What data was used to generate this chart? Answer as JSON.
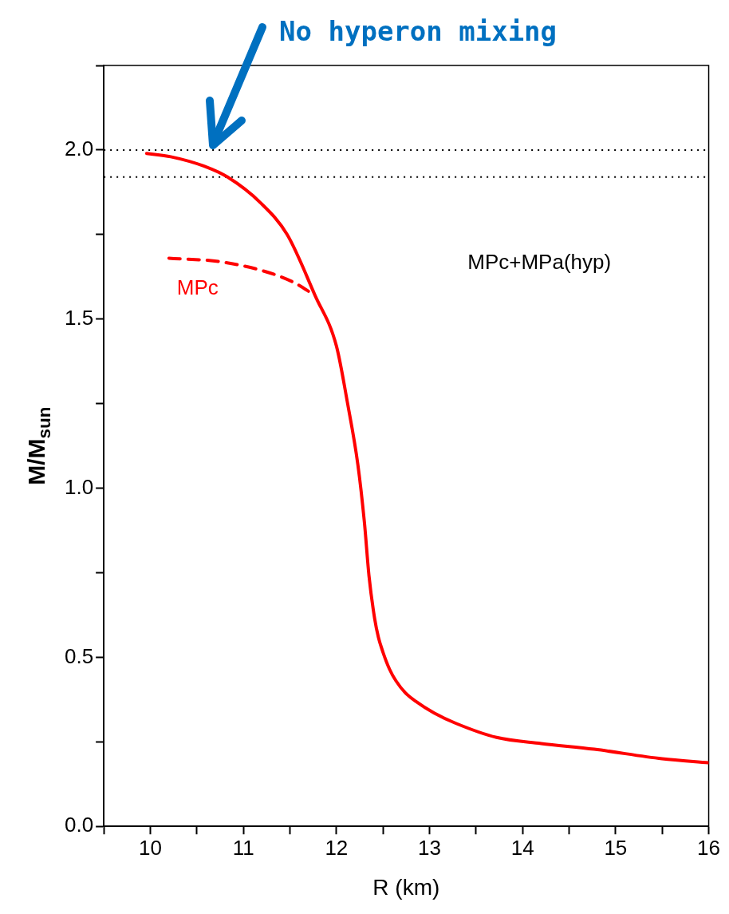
{
  "chart_data": {
    "type": "line",
    "xlabel": "R (km)",
    "ylabel": "M/M$_{sun}$",
    "xlim": [
      9.5,
      16
    ],
    "ylim": [
      0,
      2.25
    ],
    "xticks": [
      {
        "value": 9.5,
        "label": null
      },
      10,
      {
        "value": 10.5,
        "label": null
      },
      11,
      {
        "value": 11.5,
        "label": null
      },
      12,
      {
        "value": 12.5,
        "label": null
      },
      13,
      {
        "value": 13.5,
        "label": null
      },
      14,
      {
        "value": 14.5,
        "label": null
      },
      15,
      {
        "value": 15.5,
        "label": null
      },
      16
    ],
    "yticks": [
      {
        "value": 0,
        "label": "0.0"
      },
      {
        "value": 0.25,
        "label": null
      },
      {
        "value": 0.5,
        "label": "0.5"
      },
      {
        "value": 0.75,
        "label": null
      },
      {
        "value": 1,
        "label": "1.0"
      },
      {
        "value": 1.25,
        "label": null
      },
      {
        "value": 1.5,
        "label": "1.5"
      },
      {
        "value": 1.75,
        "label": null
      },
      {
        "value": 2,
        "label": "2.0"
      },
      {
        "value": 2.25,
        "label": null
      }
    ],
    "grid": false,
    "legend": false,
    "marker": "none",
    "series": [
      {
        "color": "#ff0000",
        "line_style": "solid",
        "x": [
          9.96,
          10.22,
          10.6,
          10.83,
          11.18,
          11.47,
          11.77,
          12.0,
          12.12,
          12.23,
          12.3,
          12.35,
          12.41,
          12.45,
          12.5,
          12.57,
          12.64,
          12.74,
          12.85,
          13.05,
          13.28,
          13.72,
          14.2,
          14.77,
          15.5,
          16.0
        ],
        "values": [
          1.99,
          1.98,
          1.95,
          1.92,
          1.845,
          1.75,
          1.57,
          1.42,
          1.25,
          1.07,
          0.9,
          0.74,
          0.615,
          0.56,
          0.515,
          0.465,
          0.43,
          0.395,
          0.37,
          0.335,
          0.305,
          0.263,
          0.245,
          0.228,
          0.2,
          0.188
        ]
      },
      {
        "name": "MPc",
        "color": "#ff0000",
        "line_style": "dashed",
        "x": [
          10.2,
          10.74,
          11.18,
          11.53,
          11.77
        ],
        "values": [
          1.68,
          1.67,
          1.645,
          1.61,
          1.57
        ]
      }
    ],
    "ref_lines": [
      {
        "axis": "y",
        "value": 2.0,
        "color": "#000000",
        "line_style": "dotted"
      },
      {
        "axis": "y",
        "value": 1.92,
        "color": "#000000",
        "line_style": "dotted"
      }
    ],
    "annotations": [
      "No hyperon mixing",
      "MPc+MPa(hyp)"
    ]
  }
}
